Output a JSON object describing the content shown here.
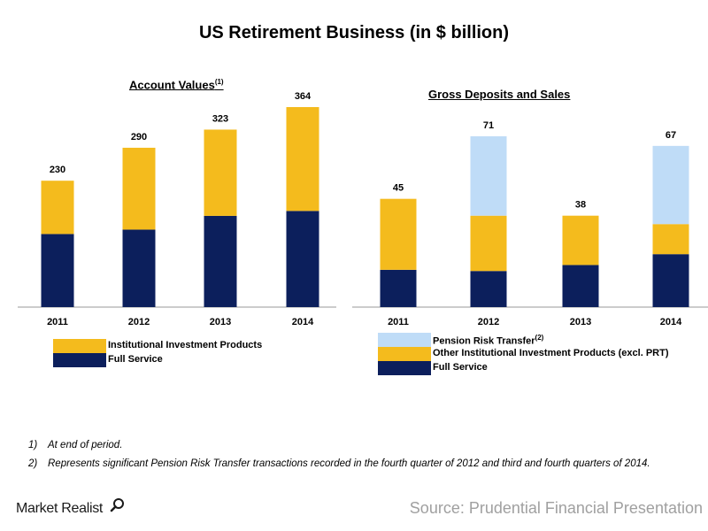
{
  "title": "US Retirement Business (in $ billion)",
  "colors": {
    "full_service": "#0c1f5c",
    "institutional": "#f4bb1d",
    "pension": "#bfdcf7"
  },
  "chart_data": [
    {
      "type": "bar",
      "stacked": true,
      "title": "Account Values",
      "title_footnote": "(1)",
      "categories": [
        "2011",
        "2012",
        "2013",
        "2014"
      ],
      "totals": [
        230,
        290,
        323,
        364
      ],
      "series": [
        {
          "name": "Full Service",
          "values": [
            133,
            141,
            166,
            175
          ]
        },
        {
          "name": "Institutional Investment Products",
          "values": [
            97,
            149,
            157,
            189
          ]
        }
      ],
      "ylim": [
        0,
        400
      ],
      "grid": false,
      "legend": [
        {
          "name": "Institutional Investment Products",
          "footnote": "",
          "color_key": "institutional"
        },
        {
          "name": "Full Service",
          "footnote": "",
          "color_key": "full_service"
        }
      ]
    },
    {
      "type": "bar",
      "stacked": true,
      "title": "Gross Deposits and Sales",
      "title_footnote": "",
      "categories": [
        "2011",
        "2012",
        "2013",
        "2014"
      ],
      "totals": [
        45,
        71,
        38,
        67
      ],
      "series": [
        {
          "name": "Full Service",
          "values": [
            15.5,
            15,
            17.5,
            22
          ]
        },
        {
          "name": "Other Institutional Investment Products (excl. PRT)",
          "values": [
            29.5,
            23,
            20.5,
            12.5
          ]
        },
        {
          "name": "Pension Risk Transfer",
          "values": [
            0,
            33,
            0,
            32.5
          ]
        }
      ],
      "ylim": [
        0,
        80
      ],
      "grid": false,
      "legend": [
        {
          "name": "Pension Risk Transfer",
          "footnote": "(2)",
          "color_key": "pension"
        },
        {
          "name": "Other Institutional Investment Products (excl. PRT)",
          "footnote": "",
          "color_key": "institutional"
        },
        {
          "name": "Full Service",
          "footnote": "",
          "color_key": "full_service"
        }
      ]
    }
  ],
  "footnotes": [
    {
      "num": "1)",
      "text": "At end of period."
    },
    {
      "num": "2)",
      "text": "Represents significant Pension Risk Transfer transactions recorded in the fourth quarter of 2012 and third and fourth quarters of 2014."
    }
  ],
  "brand": "Market Realist",
  "brand_icon": "magnifier-icon",
  "source": "Source: Prudential Financial Presentation"
}
